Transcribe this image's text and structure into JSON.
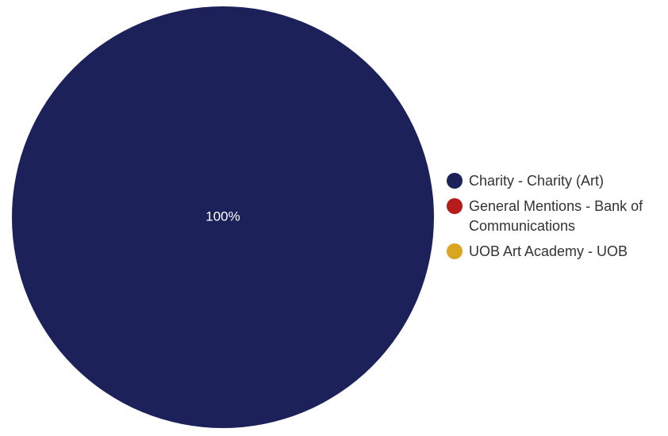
{
  "chart_data": {
    "type": "pie",
    "slices": [
      {
        "name": "Charity - Charity (Art)",
        "value": 100,
        "color": "#1c2259",
        "label": "100%"
      },
      {
        "name": "General Mentions - Bank of Communications",
        "value": 0,
        "color": "#b71c1c",
        "label": ""
      },
      {
        "name": "UOB Art Academy - UOB",
        "value": 0,
        "color": "#daa520",
        "label": ""
      }
    ],
    "legend_position": "right"
  }
}
